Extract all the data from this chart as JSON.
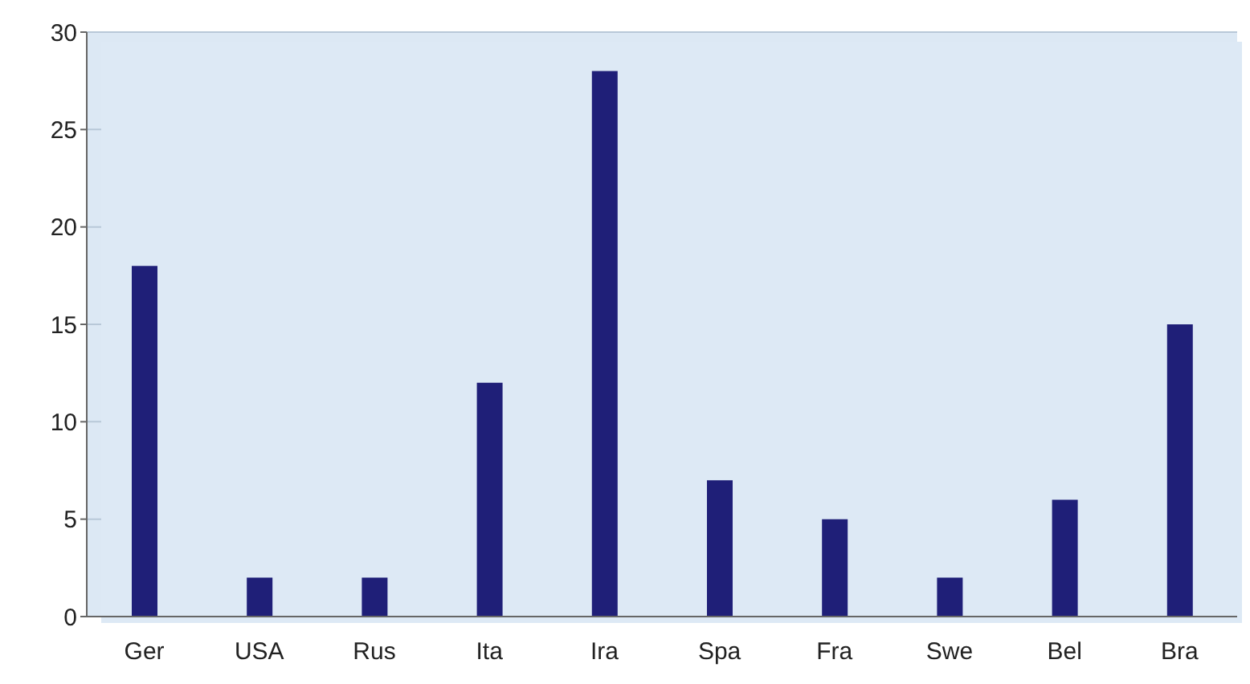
{
  "chart_data": {
    "type": "bar",
    "categories": [
      "Ger",
      "USA",
      "Rus",
      "Ita",
      "Ira",
      "Spa",
      "Fra",
      "Swe",
      "Bel",
      "Bra"
    ],
    "values": [
      18,
      2,
      2,
      12,
      28,
      7,
      5,
      2,
      6,
      15
    ],
    "color": "#1f1f78",
    "ylim": [
      0,
      30
    ],
    "yticks": [
      0,
      5,
      10,
      15,
      20,
      25,
      30
    ],
    "grid": "y",
    "legend": false
  }
}
